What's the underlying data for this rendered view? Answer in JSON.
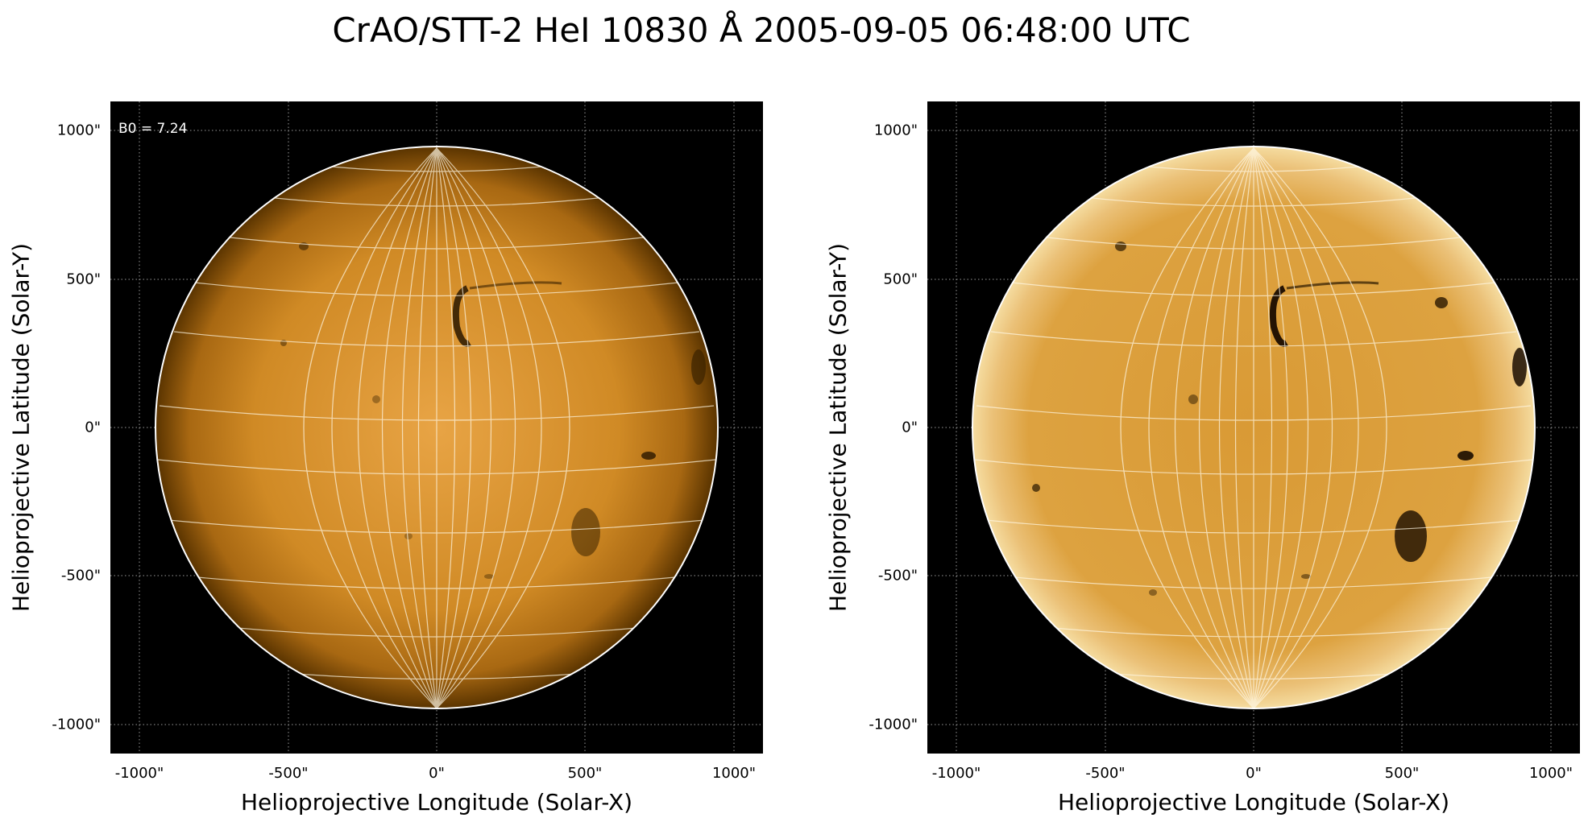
{
  "title": "CrAO/STT-2 HeI 10830 Å 2005-09-05 06:48:00 UTC",
  "axes": {
    "xlabel": "Helioprojective Longitude (Solar-X)",
    "ylabel": "Helioprojective Latitude (Solar-Y)",
    "xticks": [
      "-1000\"",
      "-500\"",
      "0\"",
      "500\"",
      "1000\""
    ],
    "yticks": [
      "1000\"",
      "500\"",
      "0\"",
      "-500\"",
      "-1000\""
    ]
  },
  "panels": [
    {
      "annotation": "B0 = 7.24",
      "image_description": "solar disk, limb-darkened"
    },
    {
      "annotation": "",
      "image_description": "solar disk, limb-brightening corrected"
    }
  ],
  "colors": {
    "disk_center": "#e8a445",
    "disk_mid": "#c9841f",
    "disk_limb": "#5a3400",
    "disk_corrected": "#d99a35",
    "limb_bright": "#f5dca0",
    "feature_dark": "#2a1800",
    "grid": "#ffffff",
    "background": "#000000"
  },
  "solar_features": [
    {
      "name": "filament-north",
      "description": "curved dark filament"
    },
    {
      "name": "active-region-east",
      "description": "dark plage"
    },
    {
      "name": "active-region-south",
      "description": "dark cluster"
    }
  ]
}
